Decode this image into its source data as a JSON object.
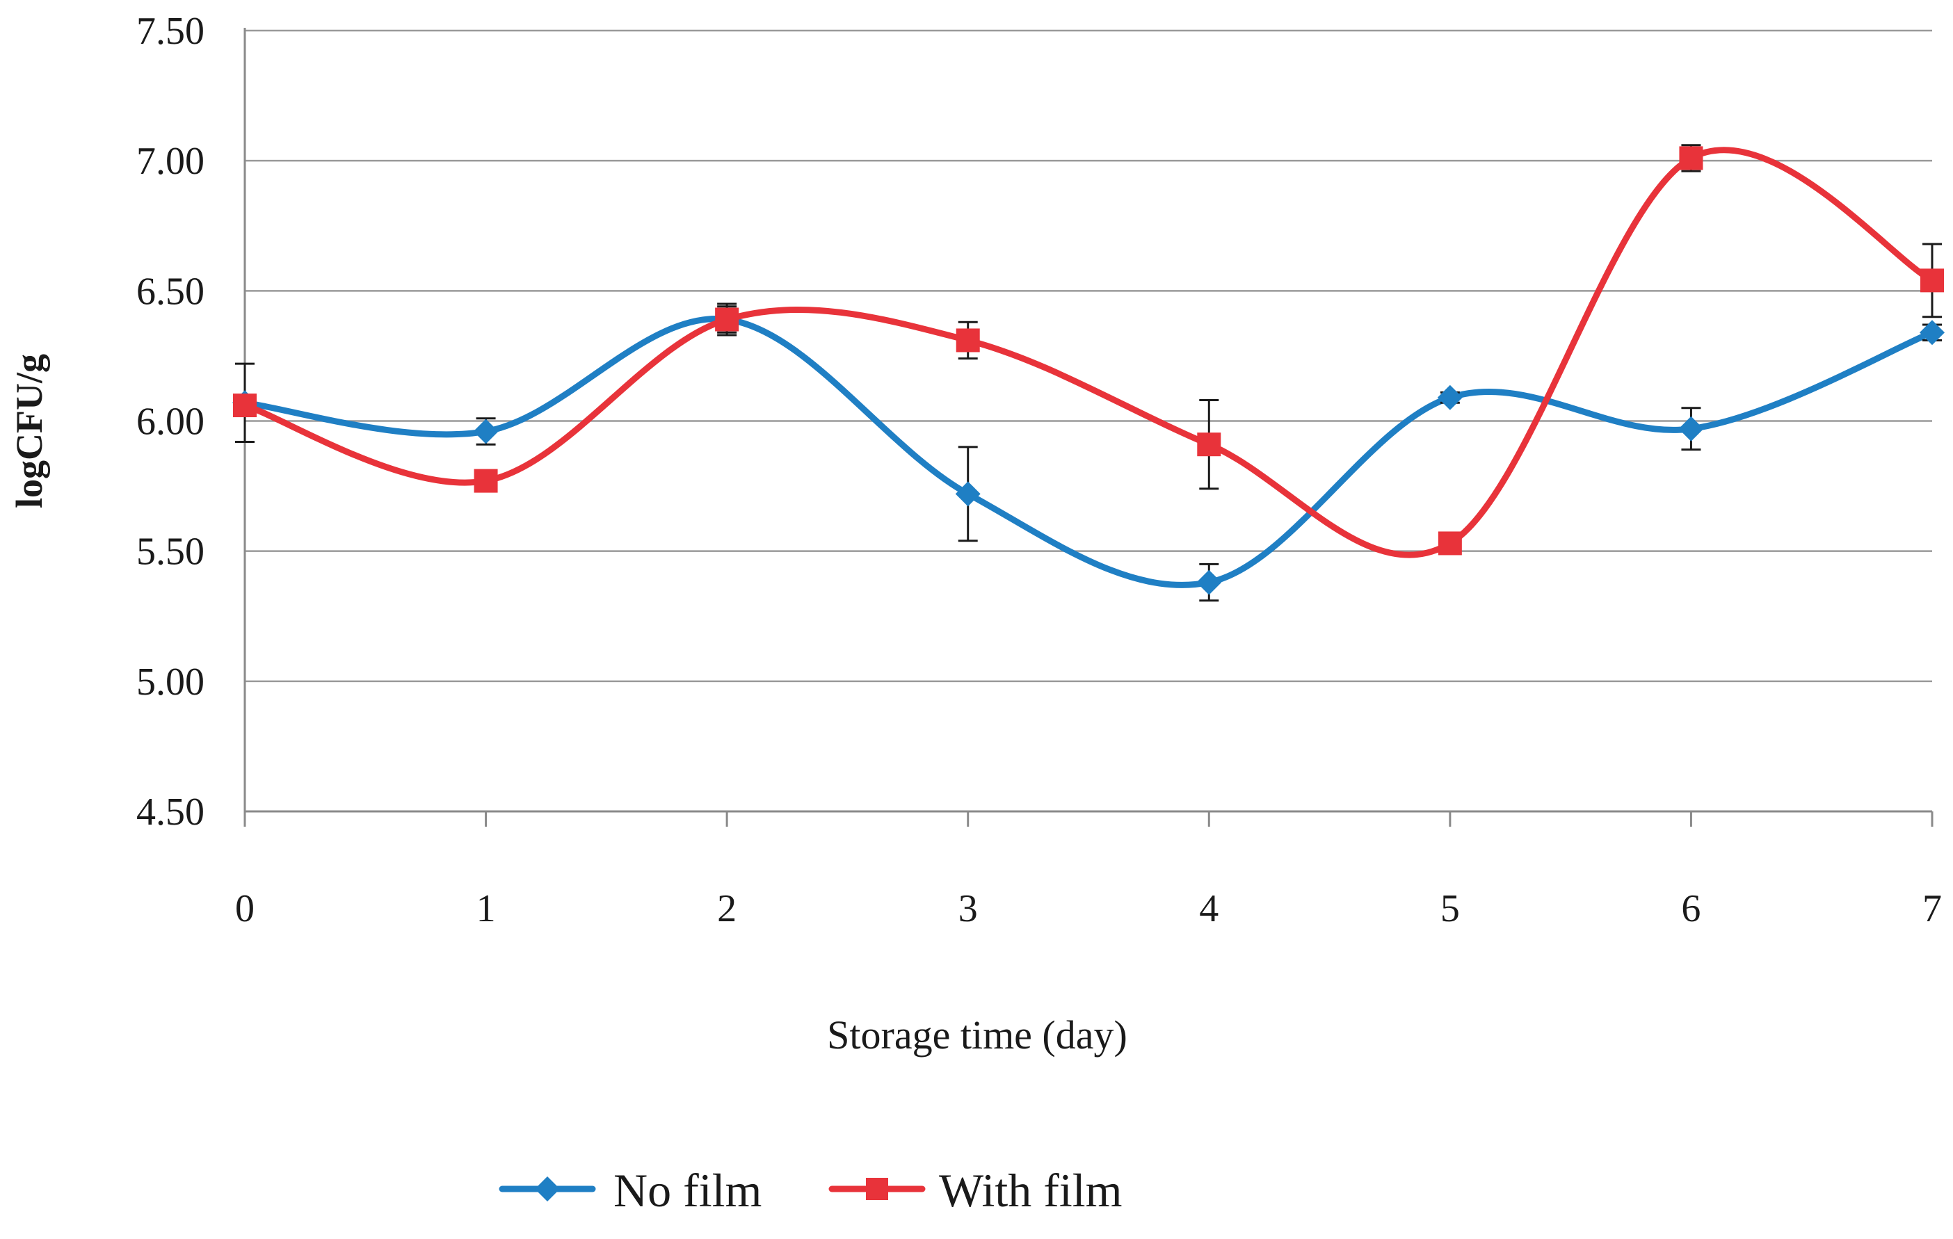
{
  "chart_data": {
    "type": "line",
    "xlabel": "Storage time (day)",
    "ylabel": "logCFU/g",
    "x": [
      0,
      1,
      2,
      3,
      4,
      5,
      6,
      7
    ],
    "x_tick_labels": [
      "0",
      "1",
      "2",
      "3",
      "4",
      "5",
      "6",
      "7"
    ],
    "y_tick_labels": [
      "4.50",
      "5.00",
      "5.50",
      "6.00",
      "6.50",
      "7.00",
      "7.50"
    ],
    "ylim": [
      4.5,
      7.5
    ],
    "y_ticks": [
      4.5,
      5.0,
      5.5,
      6.0,
      6.5,
      7.0,
      7.5
    ],
    "grid": "horizontal",
    "legend_position": "bottom",
    "smooth": true,
    "series": [
      {
        "name": "No film",
        "color": "#1f7fc4",
        "marker": "diamond",
        "values": [
          6.07,
          5.96,
          6.39,
          5.72,
          5.38,
          6.09,
          5.97,
          6.34
        ],
        "errors": [
          0.15,
          0.05,
          0.05,
          0.18,
          0.07,
          0.02,
          0.08,
          0.03
        ]
      },
      {
        "name": "With film",
        "color": "#e8333a",
        "marker": "square",
        "values": [
          6.06,
          5.77,
          6.39,
          6.31,
          5.91,
          5.53,
          7.01,
          6.54
        ],
        "errors": [
          0.02,
          0.04,
          0.06,
          0.07,
          0.17,
          0.01,
          0.05,
          0.14
        ]
      }
    ]
  }
}
